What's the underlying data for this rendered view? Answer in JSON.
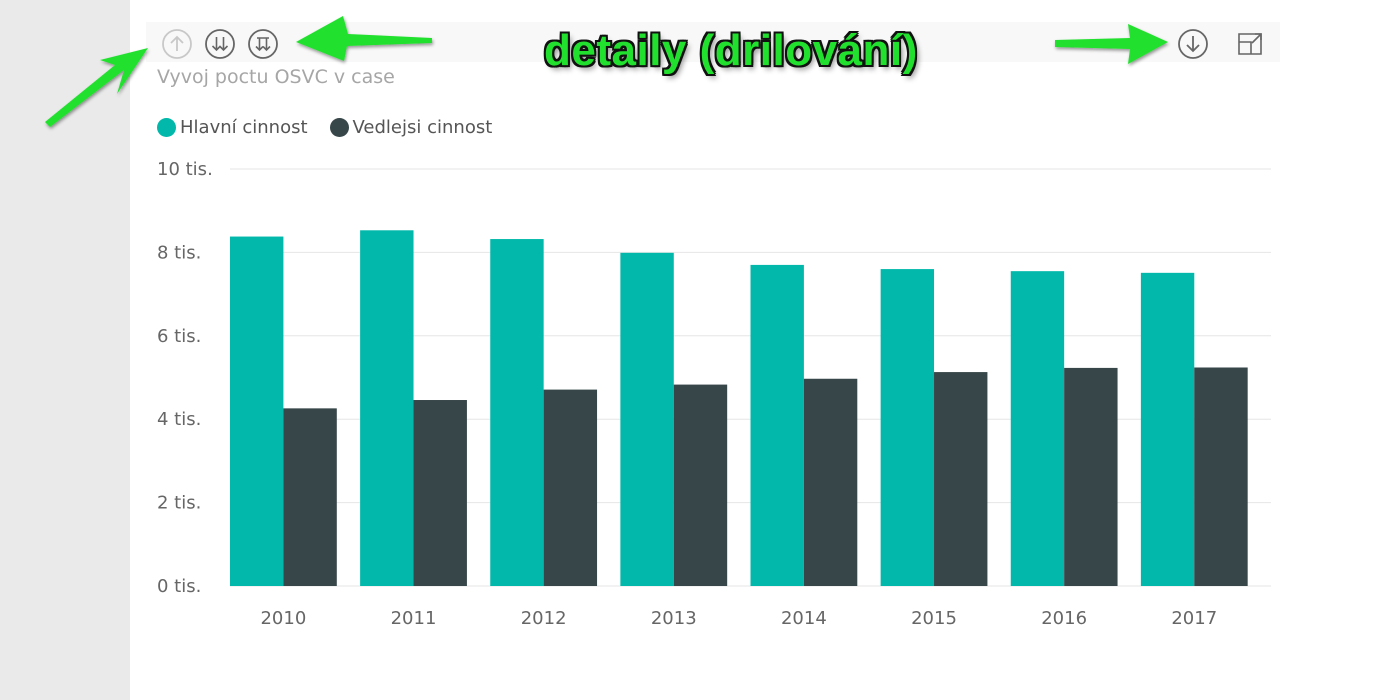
{
  "chart_title": "Vyvoj poctu OSVC v case",
  "annotation": "detaily (drilování)",
  "header_buttons": {
    "drill_up": "drill-up-icon",
    "drill_down_all": "expand-next-level-icon",
    "drill_hierarchy": "expand-hierarchy-icon",
    "drill_mode": "drill-mode-icon",
    "focus_mode": "focus-mode-icon"
  },
  "colors": {
    "hlavni": "#01b8aa",
    "vedlejsi": "#374649",
    "arrow": "#22e02e"
  },
  "chart_data": {
    "type": "bar",
    "title": "Vyvoj poctu OSVC v case",
    "categories": [
      "2010",
      "2011",
      "2012",
      "2013",
      "2014",
      "2015",
      "2016",
      "2017"
    ],
    "series": [
      {
        "name": "Hlavní cinnost",
        "values": [
          8380,
          8530,
          8320,
          7990,
          7700,
          7600,
          7550,
          7510
        ]
      },
      {
        "name": "Vedlejsi cinnost",
        "values": [
          4260,
          4460,
          4710,
          4830,
          4970,
          5130,
          5230,
          5240
        ]
      }
    ],
    "yticks": [
      "0 tis.",
      "2 tis.",
      "4 tis.",
      "6 tis.",
      "8 tis.",
      "10 tis."
    ],
    "ylim": [
      0,
      10000
    ],
    "grid": true,
    "legend_position": "top-left"
  }
}
